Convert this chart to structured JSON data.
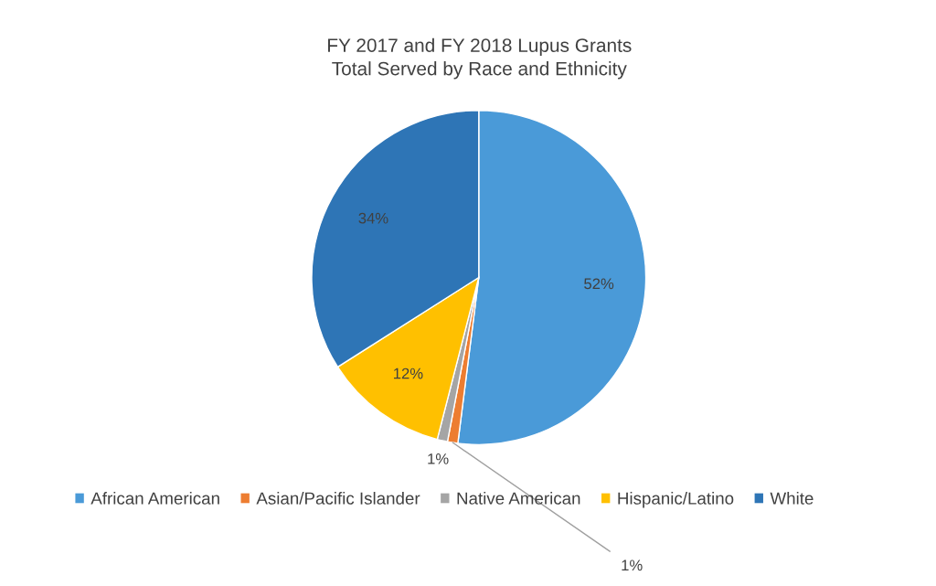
{
  "chart_data": {
    "type": "pie",
    "title": "FY 2017 and FY 2018 Lupus Grants\nTotal Served by Race and Ethnicity",
    "categories": [
      "African American",
      "Asian/Pacific Islander",
      "Native American",
      "Hispanic/Latino",
      "White"
    ],
    "values": [
      52,
      1,
      1,
      12,
      34
    ],
    "value_labels": [
      "52%",
      "1%",
      "1%",
      "12%",
      "34%"
    ],
    "colors": [
      "#4a9ad8",
      "#ed7d31",
      "#a5a5a5",
      "#ffc000",
      "#2e75b6"
    ],
    "legend": "bottom"
  }
}
